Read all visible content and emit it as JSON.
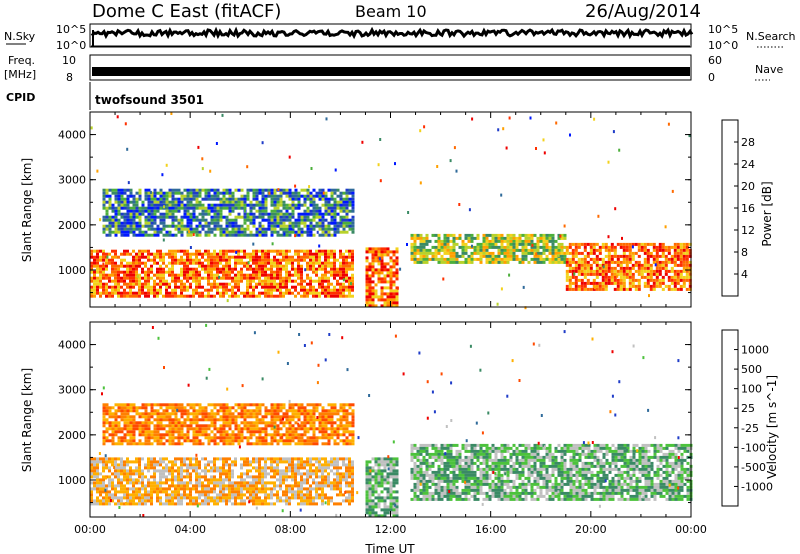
{
  "header": {
    "station": "Dome C East (fitACF)",
    "beam": "Beam 10",
    "date": "26/Aug/2014"
  },
  "top_panels": {
    "nsky": {
      "label": "N.Sky",
      "tick_top": "10^5",
      "tick_bottom": "10^0"
    },
    "nsearch": {
      "label": "N.Search",
      "tick_top": "10^5",
      "tick_bottom": "10^0"
    },
    "freq": {
      "label_line1": "Freq.",
      "label_line2": "[MHz]",
      "tick_top": "10",
      "tick_bottom": "8"
    },
    "nave": {
      "label": "Nave",
      "tick_top": "60",
      "tick_bottom": "0"
    },
    "cpid": {
      "label": "CPID",
      "value": "twofsound 3501"
    }
  },
  "chart_data": [
    {
      "type": "heatmap",
      "title": "",
      "xlabel": "",
      "ylabel": "Slant Range [km]",
      "xlim": [
        0,
        24
      ],
      "ylim": [
        180,
        4500
      ],
      "x_ticks": [
        "00:00",
        "04:00",
        "08:00",
        "12:00",
        "16:00",
        "20:00",
        "00:00"
      ],
      "y_ticks": [
        "1000",
        "2000",
        "3000",
        "4000"
      ],
      "colorbar": {
        "label": "Power [dB]",
        "ticks": [
          "4",
          "8",
          "12",
          "16",
          "20",
          "24",
          "28"
        ],
        "colors": [
          "#0018ff",
          "#1f3cc8",
          "#2f6a9a",
          "#3a8a64",
          "#4caf3c",
          "#b8d22a",
          "#f3d21c",
          "#ffa000",
          "#ff6a00",
          "#ff3000",
          "#ee0000"
        ]
      },
      "regions": [
        {
          "t0": 0.0,
          "t1": 10.5,
          "r0": 450,
          "r1": 1450,
          "value": "red/orange"
        },
        {
          "t0": 0.5,
          "t1": 10.5,
          "r0": 1800,
          "r1": 2800,
          "value": "green/blue"
        },
        {
          "t0": 11.0,
          "t1": 12.3,
          "r0": 180,
          "r1": 1500,
          "value": "red"
        },
        {
          "t0": 12.8,
          "t1": 19.0,
          "r0": 1200,
          "r1": 1800,
          "value": "green/orange"
        },
        {
          "t0": 19.0,
          "t1": 24.0,
          "r0": 600,
          "r1": 1600,
          "value": "red/orange"
        }
      ]
    },
    {
      "type": "heatmap",
      "title": "",
      "xlabel": "Time UT",
      "ylabel": "Slant Range [km]",
      "xlim": [
        0,
        24
      ],
      "ylim": [
        180,
        4500
      ],
      "x_ticks": [
        "00:00",
        "04:00",
        "08:00",
        "12:00",
        "16:00",
        "20:00",
        "00:00"
      ],
      "y_ticks": [
        "1000",
        "2000",
        "3000",
        "4000"
      ],
      "colorbar": {
        "label": "Velocity [m s^-1]",
        "ticks": [
          "1000",
          "500",
          "100",
          "25",
          "-25",
          "-100",
          "-500",
          "-1000"
        ],
        "colors": [
          "#1f3cc8",
          "#2f6a9a",
          "#3a8a64",
          "#4cc23c",
          "#c0c0c0",
          "#ffb000",
          "#ff8000",
          "#ff4a00",
          "#ee0000"
        ]
      },
      "regions": [
        {
          "t0": 0.0,
          "t1": 10.5,
          "r0": 500,
          "r1": 1500,
          "value": "grey/orange"
        },
        {
          "t0": 0.5,
          "t1": 10.5,
          "r0": 1800,
          "r1": 2700,
          "value": "orange"
        },
        {
          "t0": 11.0,
          "t1": 12.3,
          "r0": 180,
          "r1": 1500,
          "value": "green"
        },
        {
          "t0": 12.8,
          "t1": 24.0,
          "r0": 600,
          "r1": 1800,
          "value": "green"
        }
      ]
    }
  ]
}
